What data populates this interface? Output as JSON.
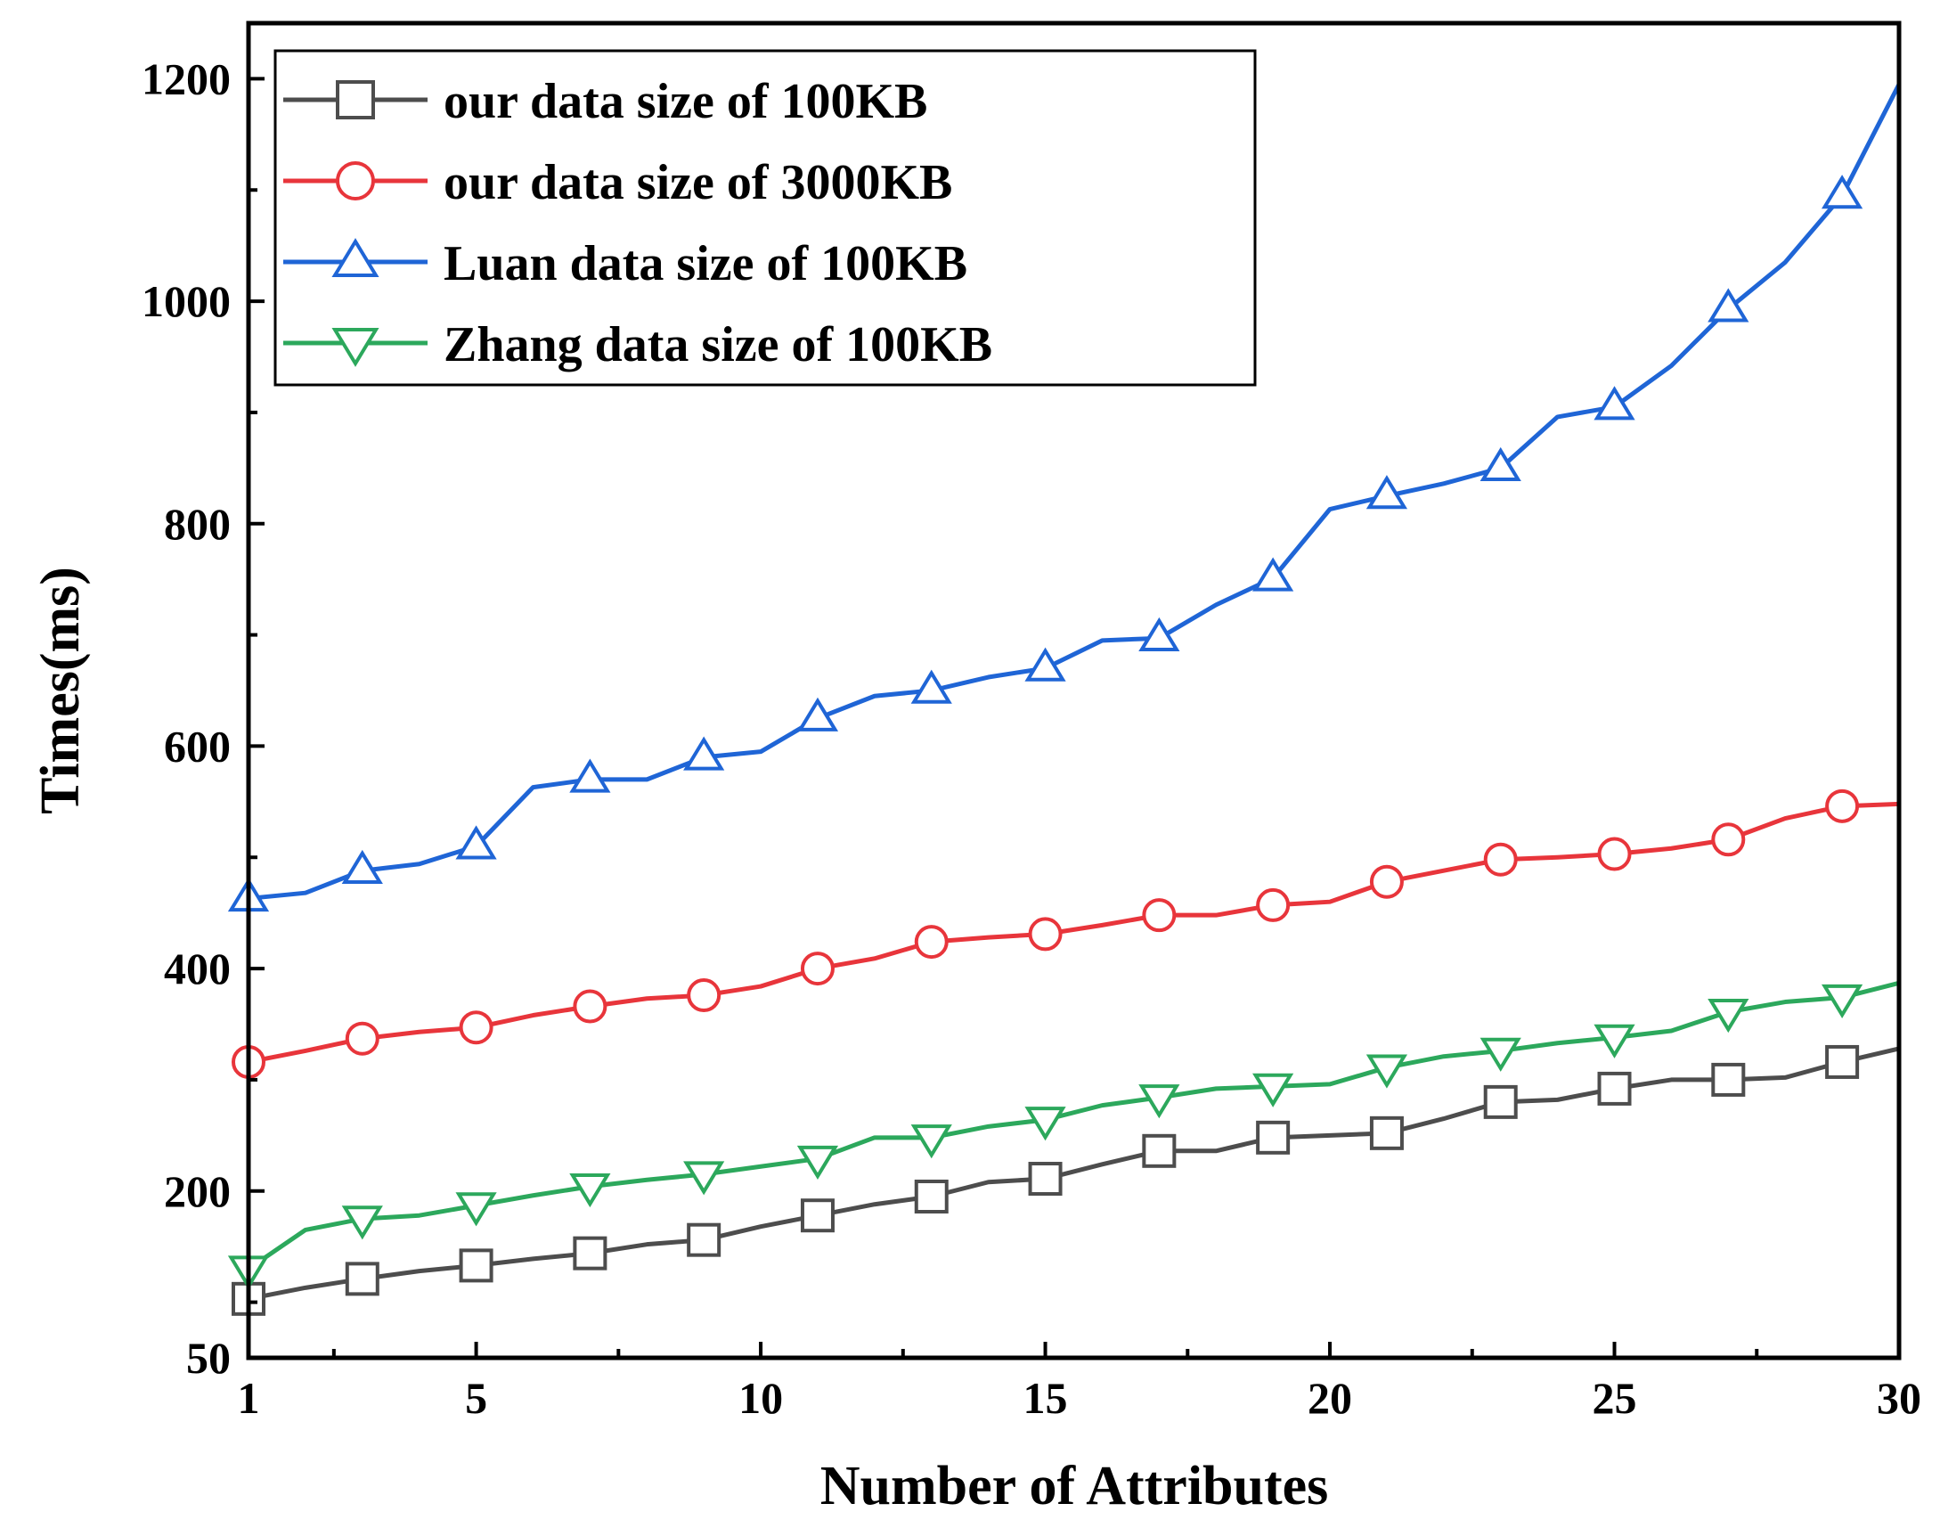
{
  "chart_data": {
    "type": "line",
    "title": "",
    "xlabel": "Number of Attributes",
    "ylabel": "Times(ms)",
    "xlim": [
      1,
      30
    ],
    "ylim": [
      50,
      1250
    ],
    "xticks": [
      1,
      5,
      10,
      15,
      20,
      25,
      30
    ],
    "yticks": [
      50,
      200,
      400,
      600,
      800,
      1000,
      1200
    ],
    "x": [
      1,
      2,
      3,
      4,
      5,
      6,
      7,
      8,
      9,
      10,
      11,
      12,
      13,
      14,
      15,
      16,
      17,
      18,
      19,
      20,
      21,
      22,
      23,
      24,
      25,
      26,
      27,
      28,
      29,
      30
    ],
    "legend_position": "top-left",
    "series": [
      {
        "name": "our data size of 100KB",
        "color": "#4d4d4d",
        "marker": "square",
        "values": [
          103,
          113,
          121,
          128,
          133,
          139,
          144,
          152,
          156,
          168,
          178,
          188,
          195,
          208,
          211,
          224,
          236,
          236,
          248,
          250,
          252,
          265,
          280,
          282,
          292,
          300,
          300,
          302,
          316,
          328
        ]
      },
      {
        "name": "our data size of 3000KB",
        "color": "#e8353b",
        "marker": "circle",
        "values": [
          316,
          326,
          337,
          343,
          347,
          358,
          366,
          373,
          376,
          384,
          400,
          409,
          424,
          428,
          431,
          439,
          448,
          448,
          457,
          460,
          478,
          488,
          498,
          500,
          503,
          508,
          516,
          535,
          546,
          548
        ]
      },
      {
        "name": "Luan data size of 100KB",
        "color": "#1f65d6",
        "marker": "triangle-up",
        "values": [
          463,
          468,
          488,
          494,
          510,
          563,
          570,
          570,
          590,
          595,
          625,
          645,
          650,
          662,
          670,
          695,
          697,
          727,
          751,
          813,
          825,
          836,
          850,
          896,
          905,
          942,
          993,
          1035,
          1095,
          1195
        ]
      },
      {
        "name": "Zhang data size of 100KB",
        "color": "#2ca85c",
        "marker": "triangle-down",
        "values": [
          130,
          165,
          175,
          178,
          187,
          196,
          204,
          210,
          215,
          222,
          229,
          248,
          248,
          258,
          264,
          277,
          284,
          292,
          294,
          296,
          311,
          321,
          326,
          333,
          338,
          344,
          361,
          370,
          374,
          387
        ]
      }
    ]
  }
}
